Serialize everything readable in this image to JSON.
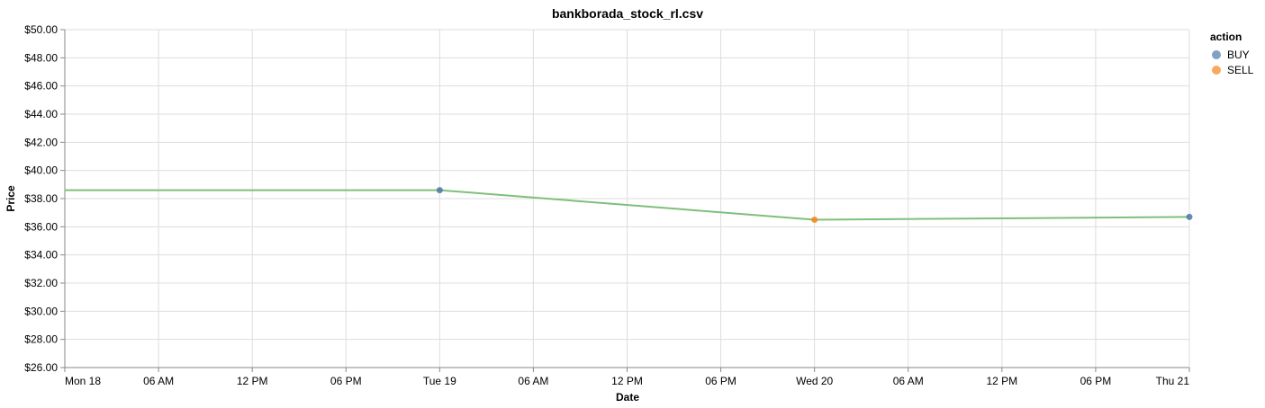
{
  "chart_data": {
    "type": "line",
    "title": "bankborada_stock_rl.csv",
    "xlabel": "Date",
    "ylabel": "Price",
    "x_axis": {
      "type": "time",
      "range": [
        "2019-11-18T00:00",
        "2019-11-21T00:00"
      ],
      "tick_interval_hours": 6,
      "tick_labels": [
        "Mon 18",
        "06 AM",
        "12 PM",
        "06 PM",
        "Tue 19",
        "06 AM",
        "12 PM",
        "06 PM",
        "Wed 20",
        "06 AM",
        "12 PM",
        "06 PM",
        "Thu 21"
      ]
    },
    "y_axis": {
      "range": [
        26,
        50
      ],
      "tick_step": 2,
      "tick_labels": [
        "$26.00",
        "$28.00",
        "$30.00",
        "$32.00",
        "$34.00",
        "$36.00",
        "$38.00",
        "$40.00",
        "$42.00",
        "$44.00",
        "$46.00",
        "$48.00",
        "$50.00"
      ]
    },
    "grid": true,
    "line": {
      "color": "#7fbf7b",
      "points": [
        {
          "x": "2019-11-18T00:00",
          "y": 38.6
        },
        {
          "x": "2019-11-19T00:00",
          "y": 38.6
        },
        {
          "x": "2019-11-20T00:00",
          "y": 36.5
        },
        {
          "x": "2019-11-21T00:00",
          "y": 36.7
        }
      ]
    },
    "actions": [
      {
        "x": "2019-11-19T00:00",
        "y": 38.6,
        "action": "BUY"
      },
      {
        "x": "2019-11-20T00:00",
        "y": 36.5,
        "action": "SELL"
      },
      {
        "x": "2019-11-21T00:00",
        "y": 36.7,
        "action": "BUY"
      }
    ],
    "legend": {
      "title": "action",
      "placement": "top-right",
      "entries": [
        {
          "label": "BUY",
          "color": "#4c78a8"
        },
        {
          "label": "SELL",
          "color": "#f58518"
        }
      ]
    }
  }
}
